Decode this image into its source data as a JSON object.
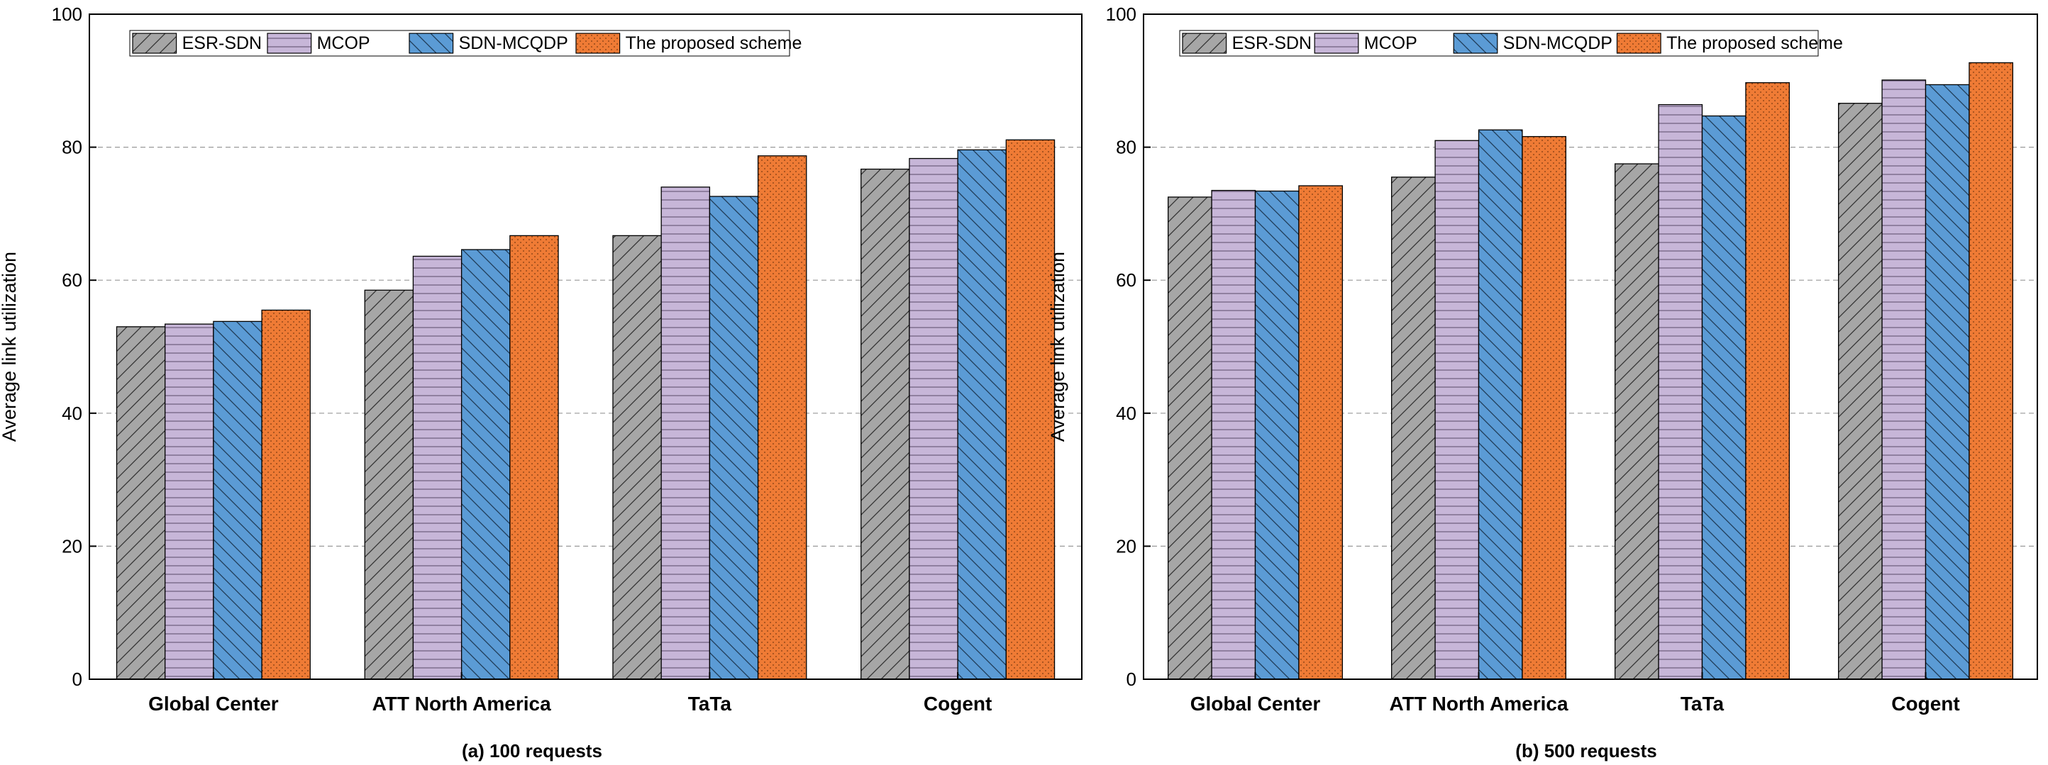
{
  "colors": {
    "ESR-SDN": "#a6a6a6",
    "MCOP": "#c7b6d8",
    "SDN-MCQDP": "#5b9bd5",
    "proposed": "#ef7b35"
  },
  "chart_data": [
    {
      "type": "bar",
      "caption": "(a) 100 requests",
      "ylabel": "Average link utilization",
      "ylim": [
        0,
        100
      ],
      "yticks": [
        0,
        20,
        40,
        60,
        80,
        100
      ],
      "grid": "dashed horizontal",
      "legend_position": "top-left",
      "categories": [
        "Global Center",
        "ATT North America",
        "TaTa",
        "Cogent"
      ],
      "series": [
        {
          "name": "ESR-SDN",
          "pattern": "diagonal",
          "values": [
            53.0,
            58.5,
            66.7,
            76.7
          ]
        },
        {
          "name": "MCOP",
          "pattern": "horizontal",
          "values": [
            53.4,
            63.6,
            74.0,
            78.3
          ]
        },
        {
          "name": "SDN-MCQDP",
          "pattern": "backdiagonal",
          "values": [
            53.8,
            64.6,
            72.6,
            79.6
          ]
        },
        {
          "name": "The proposed scheme",
          "pattern": "dots",
          "values": [
            55.5,
            66.7,
            78.7,
            81.1
          ]
        }
      ]
    },
    {
      "type": "bar",
      "caption": "(b) 500 requests",
      "ylabel": "Average link utilization",
      "ylim": [
        0,
        100
      ],
      "yticks": [
        0,
        20,
        40,
        60,
        80,
        100
      ],
      "grid": "dashed horizontal",
      "legend_position": "top-left",
      "categories": [
        "Global Center",
        "ATT North America",
        "TaTa",
        "Cogent"
      ],
      "series": [
        {
          "name": "ESR-SDN",
          "pattern": "diagonal",
          "values": [
            72.5,
            75.5,
            77.5,
            86.6
          ]
        },
        {
          "name": "MCOP",
          "pattern": "horizontal",
          "values": [
            73.5,
            81.0,
            86.4,
            90.1
          ]
        },
        {
          "name": "SDN-MCQDP",
          "pattern": "backdiagonal",
          "values": [
            73.4,
            82.6,
            84.7,
            89.4
          ]
        },
        {
          "name": "The proposed scheme",
          "pattern": "dots",
          "values": [
            74.2,
            81.6,
            89.7,
            92.7
          ]
        }
      ]
    }
  ]
}
